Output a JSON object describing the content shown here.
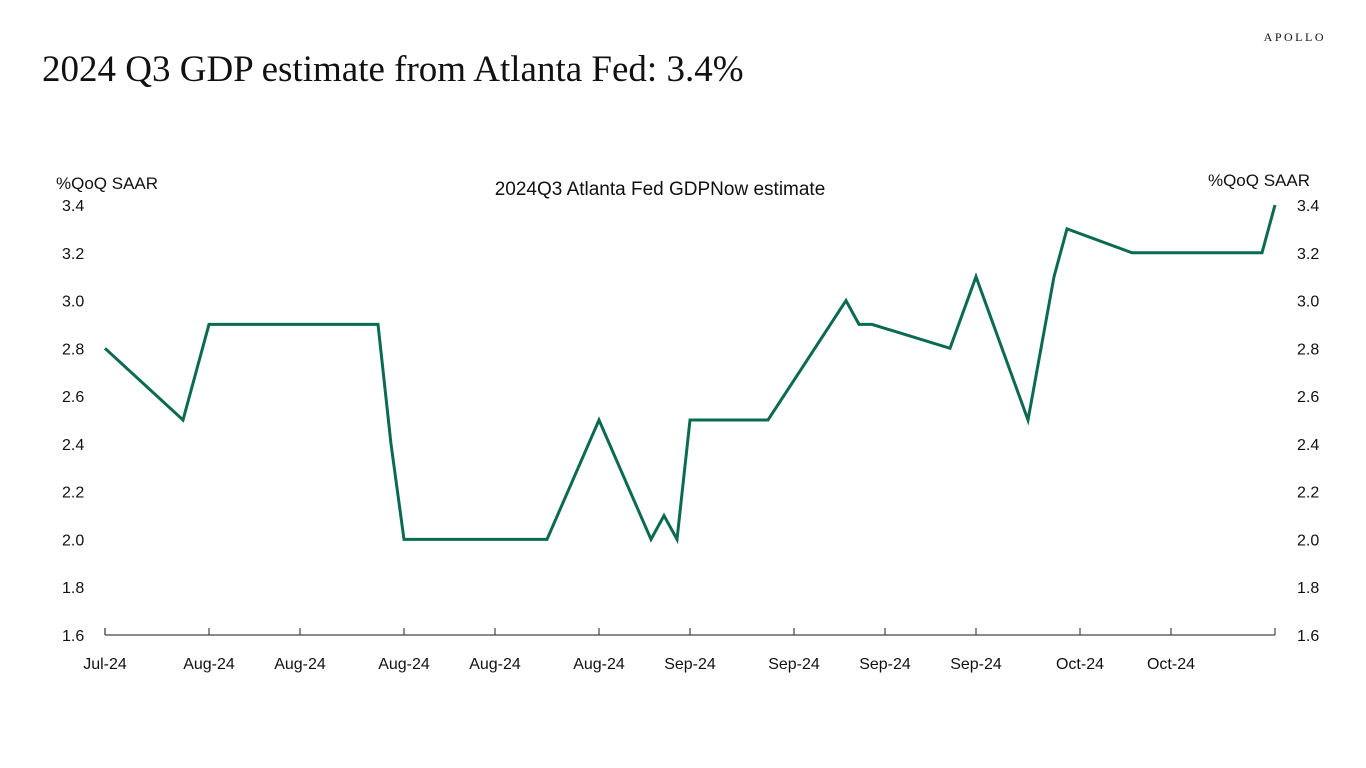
{
  "brand": "APOLLO",
  "page_title": "2024 Q3 GDP estimate from Atlanta Fed: 3.4%",
  "chart_data": {
    "type": "line",
    "title": "2024Q3 Atlanta Fed GDPNow estimate",
    "ylabel_left": "%QoQ SAAR",
    "ylabel_right": "%QoQ SAAR",
    "ylim": [
      1.6,
      3.4
    ],
    "yticks": [
      1.6,
      1.8,
      2.0,
      2.2,
      2.4,
      2.6,
      2.8,
      3.0,
      3.2,
      3.4
    ],
    "xlim": [
      "2024-07-31",
      "2024-10-29"
    ],
    "x_tick_labels": [
      "Jul-24",
      "Aug-24",
      "Aug-24",
      "Aug-24",
      "Aug-24",
      "Aug-24",
      "Sep-24",
      "Sep-24",
      "Sep-24",
      "Sep-24",
      "Oct-24",
      "Oct-24"
    ],
    "x_tick_dates": [
      "2024-07-31",
      "2024-08-08",
      "2024-08-15",
      "2024-08-23",
      "2024-08-30",
      "2024-09-07",
      "2024-09-14",
      "2024-09-22",
      "2024-09-29",
      "2024-10-06",
      "2024-10-14",
      "2024-10-21"
    ],
    "grid": false,
    "colors": {
      "line": "#0b6b52",
      "axis": "#444444"
    },
    "series": [
      {
        "points": [
          {
            "x": "2024-07-31",
            "y": 2.8
          },
          {
            "x": "2024-08-06",
            "y": 2.5
          },
          {
            "x": "2024-08-08",
            "y": 2.9
          },
          {
            "x": "2024-08-21",
            "y": 2.9
          },
          {
            "x": "2024-08-22",
            "y": 2.4
          },
          {
            "x": "2024-08-23",
            "y": 2.0
          },
          {
            "x": "2024-09-03",
            "y": 2.0
          },
          {
            "x": "2024-09-07",
            "y": 2.5
          },
          {
            "x": "2024-09-11",
            "y": 2.0
          },
          {
            "x": "2024-09-12",
            "y": 2.1
          },
          {
            "x": "2024-09-13",
            "y": 2.0
          },
          {
            "x": "2024-09-14",
            "y": 2.5
          },
          {
            "x": "2024-09-20",
            "y": 2.5
          },
          {
            "x": "2024-09-26",
            "y": 3.0
          },
          {
            "x": "2024-09-27",
            "y": 2.9
          },
          {
            "x": "2024-09-28",
            "y": 2.9
          },
          {
            "x": "2024-10-04",
            "y": 2.8
          },
          {
            "x": "2024-10-06",
            "y": 3.1
          },
          {
            "x": "2024-10-10",
            "y": 2.5
          },
          {
            "x": "2024-10-12",
            "y": 3.1
          },
          {
            "x": "2024-10-13",
            "y": 3.3
          },
          {
            "x": "2024-10-18",
            "y": 3.2
          },
          {
            "x": "2024-10-28",
            "y": 3.2
          },
          {
            "x": "2024-10-29",
            "y": 3.4
          }
        ]
      }
    ]
  }
}
